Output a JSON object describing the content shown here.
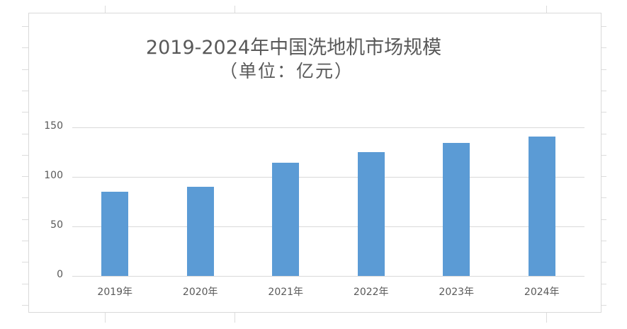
{
  "chart_data": {
    "type": "bar",
    "title": "2019-2024年中国洗地机市场规模",
    "subtitle": "（单位：亿元）",
    "categories": [
      "2019年",
      "2020年",
      "2021年",
      "2022年",
      "2023年",
      "2024年"
    ],
    "values": [
      85,
      90,
      114,
      125,
      134,
      141
    ],
    "xlabel": "",
    "ylabel": "",
    "ylim": [
      0,
      150
    ],
    "yticks": [
      "0",
      "50",
      "100",
      "150"
    ],
    "grid": true,
    "legend": "none",
    "bar_color": "#5b9bd5"
  }
}
